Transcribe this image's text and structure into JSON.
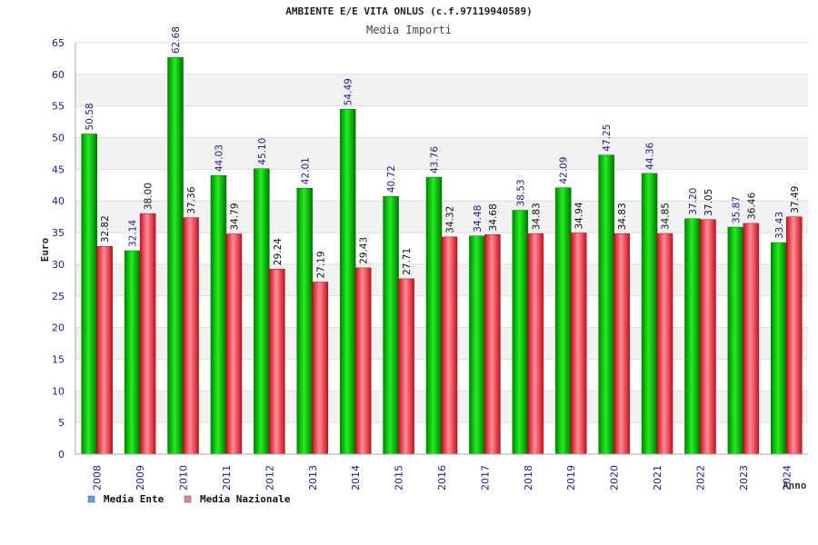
{
  "chart_data": {
    "type": "bar",
    "title": "AMBIENTE E/E VITA ONLUS (c.f.97119940589)",
    "subtitle": "Media Importi",
    "xlabel": "Anno",
    "ylabel": "Euro",
    "ylim": [
      0,
      65
    ],
    "yticks": [
      0,
      5,
      10,
      15,
      20,
      25,
      30,
      35,
      40,
      45,
      50,
      55,
      60,
      65
    ],
    "grid": true,
    "legend_position": "bottom-left",
    "categories": [
      "2008",
      "2009",
      "2010",
      "2011",
      "2012",
      "2013",
      "2014",
      "2015",
      "2016",
      "2017",
      "2018",
      "2019",
      "2020",
      "2021",
      "2022",
      "2023",
      "2024"
    ],
    "series": [
      {
        "name": "Media Ente",
        "legend_color": "#5aa0e6",
        "bar_color": "#00b000",
        "values": [
          50.58,
          32.14,
          62.68,
          44.03,
          45.1,
          42.01,
          54.49,
          40.72,
          43.76,
          34.48,
          38.53,
          42.09,
          47.25,
          44.36,
          37.2,
          35.87,
          33.43
        ],
        "labels": [
          "50.58",
          "32.14",
          "62.68",
          "44.03",
          "45.10",
          "42.01",
          "54.49",
          "40.72",
          "43.76",
          "34.48",
          "38.53",
          "42.09",
          "47.25",
          "44.36",
          "37.20",
          "35.87",
          "33.43"
        ]
      },
      {
        "name": "Media Nazionale",
        "legend_color": "#e87ab0",
        "bar_color": "#e02030",
        "values": [
          32.82,
          38.0,
          37.36,
          34.79,
          29.24,
          27.19,
          29.43,
          27.71,
          34.32,
          34.68,
          34.83,
          34.94,
          34.83,
          34.85,
          37.05,
          36.46,
          37.49
        ],
        "labels": [
          "32.82",
          "38.00",
          "37.36",
          "34.79",
          "29.24",
          "27.19",
          "29.43",
          "27.71",
          "34.32",
          "34.68",
          "34.83",
          "34.94",
          "34.83",
          "34.85",
          "37.05",
          "36.46",
          "37.49"
        ]
      }
    ]
  }
}
